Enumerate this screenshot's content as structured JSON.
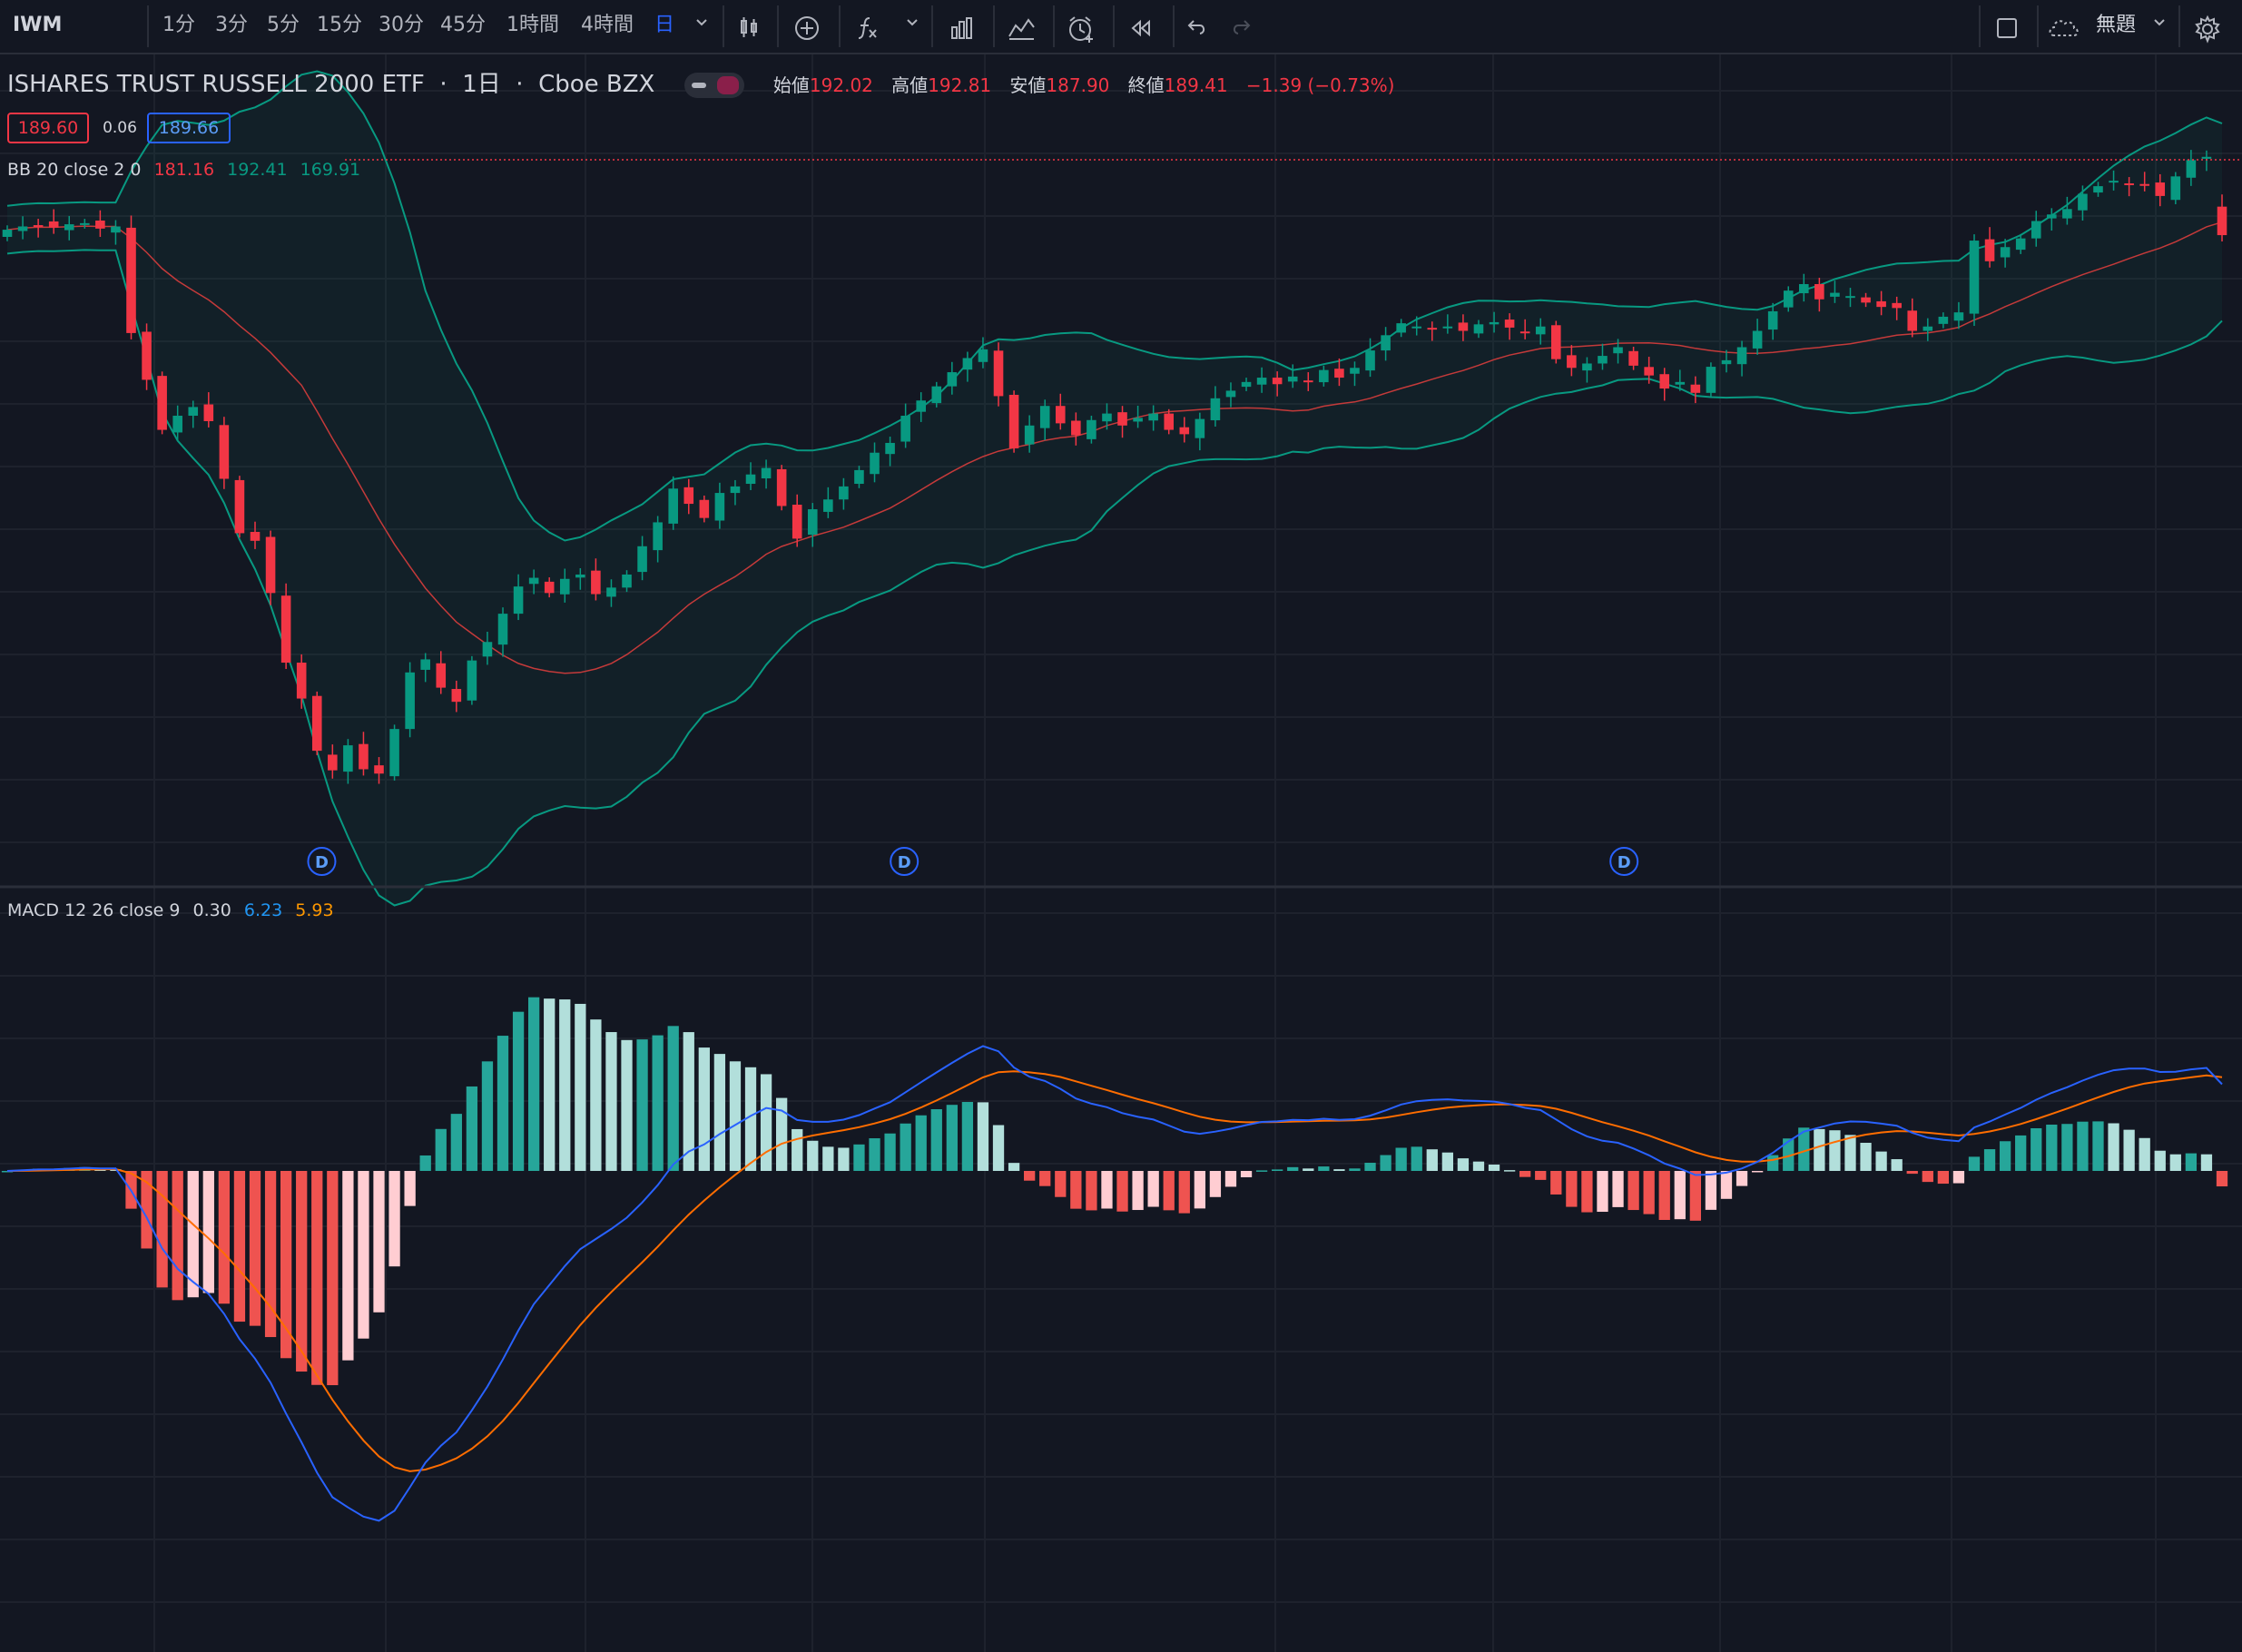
{
  "toolbar": {
    "symbol": "IWM",
    "intervals": [
      "1分",
      "3分",
      "5分",
      "15分",
      "30分",
      "45分",
      "1時間",
      "4時間",
      "日"
    ],
    "active_interval": "日",
    "layout_name": "無題",
    "colors": {
      "active": "#2962ff",
      "text": "#b2b5be"
    }
  },
  "legend": {
    "name": "ISHARES TRUST RUSSELL 2000 ETF",
    "interval": "1日",
    "exchange": "Cboe BZX",
    "open_label": "始値",
    "open": "192.02",
    "high_label": "高値",
    "high": "192.81",
    "low_label": "安値",
    "low": "187.90",
    "close_label": "終値",
    "close": "189.41",
    "change": "−1.39 (−0.73%)",
    "bid": "189.60",
    "spread": "0.06",
    "ask": "189.66"
  },
  "bb_legend": {
    "name": "BB 20 close 2 0",
    "basis": "181.16",
    "upper": "192.41",
    "lower": "169.91",
    "colors": {
      "basis": "#f23645",
      "band": "#089981"
    }
  },
  "macd_legend": {
    "name": "MACD 12 26 close 9",
    "histogram": "0.30",
    "macd": "6.23",
    "signal": "5.93",
    "colors": {
      "macd": "#2962ff",
      "signal": "#ff6d00"
    }
  },
  "dividend_marker_label": "D",
  "chart_data": {
    "type": "candlestick",
    "ohlc_close_path": [
      189.9,
      190.2,
      190.3,
      190.1,
      190.4,
      190.5,
      190.0,
      190.2,
      180.4,
      176.1,
      171.5,
      172.8,
      173.6,
      172.3,
      167.0,
      162.0,
      161.3,
      156.5,
      150.1,
      146.8,
      142.0,
      140.2,
      142.5,
      140.3,
      139.9,
      144.0,
      149.2,
      150.4,
      147.8,
      146.5,
      150.3,
      152.0,
      154.6,
      157.1,
      157.9,
      156.5,
      157.8,
      158.2,
      156.4,
      157.0,
      158.2,
      160.8,
      163.0,
      166.1,
      164.7,
      163.4,
      165.7,
      166.3,
      167.4,
      168.0,
      164.5,
      161.5,
      164.2,
      165.1,
      166.3,
      167.8,
      169.4,
      170.3,
      172.8,
      174.2,
      175.5,
      176.8,
      178.1,
      178.9,
      174.6,
      169.8,
      171.9,
      173.7,
      172.1,
      171.0,
      172.4,
      173.0,
      171.9,
      172.6,
      173.0,
      171.5,
      171.1,
      172.5,
      174.4,
      175.1,
      175.9,
      176.3,
      175.7,
      176.4,
      176.0,
      177.0,
      176.3,
      177.2,
      178.8,
      180.2,
      181.3,
      181.0,
      180.8,
      181.0,
      180.6,
      181.2,
      181.4,
      180.9,
      180.4,
      181.0,
      178.0,
      177.2,
      177.6,
      178.3,
      179.1,
      177.4,
      176.5,
      175.3,
      175.9,
      174.9,
      177.3,
      177.9,
      179.1,
      180.6,
      182.4,
      184.3,
      184.9,
      183.5,
      184.1,
      183.8,
      183.2,
      182.8,
      182.7,
      180.6,
      181.0,
      181.9,
      182.3,
      188.9,
      187.0,
      188.3,
      189.1,
      190.7,
      191.3,
      191.8,
      193.2,
      193.9,
      194.4,
      194.1,
      194.0,
      193.0,
      194.8,
      196.3,
      196.6,
      189.4
    ],
    "x_labels": [],
    "bollinger": {
      "period": 20,
      "stddev": 2,
      "basis": 181.16,
      "upper": 192.41,
      "lower": 169.91
    },
    "macd": {
      "fast": 12,
      "slow": 26,
      "signal_period": 9,
      "histogram": 0.3,
      "macd": 6.23,
      "signal": 5.93
    },
    "dividend_markers_count": 3
  }
}
